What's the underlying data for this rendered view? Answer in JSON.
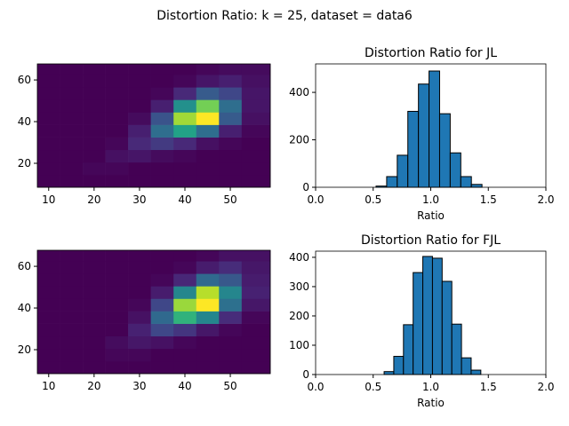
{
  "title": "Distortion Ratio: k = 25, dataset = data6",
  "chart_data": [
    {
      "type": "hist2d",
      "colormap": "viridis",
      "xbins": [
        7.5,
        12.5,
        17.5,
        22.5,
        27.5,
        32.5,
        37.5,
        42.5,
        47.5,
        52.5,
        58.8
      ],
      "ybins": [
        8.5,
        14.5,
        20.5,
        26.5,
        32.5,
        38.5,
        44.5,
        50.5,
        56.5,
        62.5,
        67.7
      ],
      "counts": [
        [
          0,
          0,
          0,
          0,
          0,
          0,
          0,
          0,
          0,
          0
        ],
        [
          0,
          0,
          1,
          1,
          0,
          0,
          0,
          0,
          0,
          0
        ],
        [
          0,
          0,
          0,
          3,
          4,
          2,
          1,
          0,
          0,
          0
        ],
        [
          0,
          0,
          0,
          1,
          8,
          12,
          8,
          3,
          1,
          0
        ],
        [
          0,
          0,
          0,
          0,
          6,
          25,
          40,
          25,
          6,
          1
        ],
        [
          0,
          0,
          0,
          0,
          2,
          18,
          60,
          70,
          20,
          3
        ],
        [
          0,
          0,
          0,
          0,
          0,
          6,
          35,
          55,
          25,
          4
        ],
        [
          0,
          0,
          0,
          0,
          0,
          1,
          8,
          20,
          15,
          4
        ],
        [
          0,
          0,
          0,
          0,
          0,
          0,
          1,
          4,
          6,
          3
        ],
        [
          0,
          0,
          0,
          0,
          0,
          0,
          0,
          1,
          2,
          2
        ]
      ],
      "xlim": [
        7.5,
        58.8
      ],
      "ylim": [
        8.5,
        67.7
      ],
      "xticks": [
        10,
        20,
        30,
        40,
        50
      ],
      "yticks": [
        20,
        40,
        60
      ]
    },
    {
      "type": "histogram",
      "title": "Distortion Ratio for JL",
      "xlabel": "Ratio",
      "color": "#1f77b4",
      "edgecolor": "#000000",
      "bins": [
        0.525,
        0.617,
        0.709,
        0.801,
        0.893,
        0.985,
        1.077,
        1.169,
        1.261,
        1.353,
        1.445
      ],
      "counts": [
        5,
        45,
        135,
        320,
        435,
        490,
        310,
        145,
        45,
        12
      ],
      "xlim": [
        0,
        2
      ],
      "ylim": [
        0,
        520
      ],
      "xticks": [
        {
          "value": 0,
          "label": "0.0"
        },
        0.5,
        {
          "value": 1,
          "label": "1.0"
        },
        1.5,
        {
          "value": 2,
          "label": "2.0"
        }
      ],
      "yticks": [
        0,
        200,
        400
      ]
    },
    {
      "type": "hist2d",
      "colormap": "viridis",
      "xbins": [
        7.5,
        12.5,
        17.5,
        22.5,
        27.5,
        32.5,
        37.5,
        42.5,
        47.5,
        52.5,
        58.8
      ],
      "ybins": [
        8.5,
        14.5,
        20.5,
        26.5,
        32.5,
        38.5,
        44.5,
        50.5,
        56.5,
        62.5,
        67.7
      ],
      "counts": [
        [
          0,
          0,
          0,
          0,
          0,
          0,
          0,
          0,
          0,
          0
        ],
        [
          0,
          0,
          0,
          1,
          1,
          0,
          0,
          0,
          0,
          0
        ],
        [
          0,
          0,
          0,
          2,
          4,
          3,
          1,
          0,
          0,
          0
        ],
        [
          0,
          0,
          0,
          0,
          6,
          14,
          10,
          4,
          1,
          0
        ],
        [
          0,
          0,
          0,
          0,
          3,
          22,
          42,
          30,
          8,
          1
        ],
        [
          0,
          0,
          0,
          0,
          1,
          14,
          55,
          65,
          24,
          4
        ],
        [
          0,
          0,
          0,
          0,
          0,
          5,
          30,
          58,
          30,
          6
        ],
        [
          0,
          0,
          0,
          0,
          0,
          1,
          7,
          22,
          18,
          5
        ],
        [
          0,
          0,
          0,
          0,
          0,
          0,
          1,
          5,
          8,
          4
        ],
        [
          0,
          0,
          0,
          0,
          0,
          0,
          0,
          1,
          3,
          3
        ]
      ],
      "xlim": [
        7.5,
        58.8
      ],
      "ylim": [
        8.5,
        67.7
      ],
      "xticks": [
        10,
        20,
        30,
        40,
        50
      ],
      "yticks": [
        20,
        40,
        60
      ]
    },
    {
      "type": "histogram",
      "title": "Distortion Ratio for FJL",
      "xlabel": "Ratio",
      "color": "#1f77b4",
      "edgecolor": "#000000",
      "bins": [
        0.595,
        0.679,
        0.763,
        0.847,
        0.931,
        1.015,
        1.099,
        1.183,
        1.267,
        1.351,
        1.435
      ],
      "counts": [
        10,
        62,
        170,
        348,
        403,
        397,
        318,
        172,
        57,
        15
      ],
      "xlim": [
        0,
        2
      ],
      "ylim": [
        0,
        421
      ],
      "xticks": [
        {
          "value": 0,
          "label": "0.0"
        },
        0.5,
        {
          "value": 1,
          "label": "1.0"
        },
        1.5,
        {
          "value": 2,
          "label": "2.0"
        }
      ],
      "yticks": [
        0,
        100,
        200,
        300,
        400
      ]
    }
  ]
}
